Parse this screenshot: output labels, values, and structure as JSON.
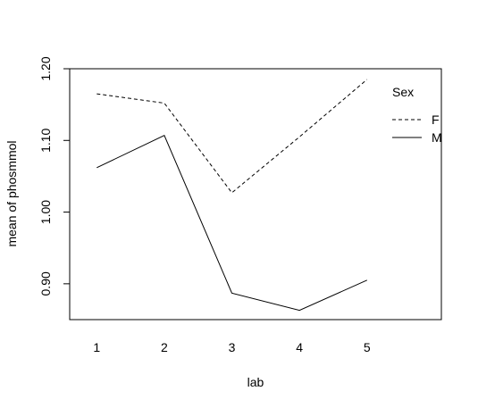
{
  "chart_data": {
    "type": "line",
    "title": "",
    "xlabel": "lab",
    "ylabel": "mean of  phosmmol",
    "categories": [
      "1",
      "2",
      "3",
      "4",
      "5"
    ],
    "x": [
      1,
      2,
      3,
      4,
      5
    ],
    "xlim": [
      0.6,
      6.1
    ],
    "ylim": [
      0.85,
      1.2
    ],
    "y_ticks": [
      0.9,
      1.0,
      1.1,
      1.2
    ],
    "y_tick_labels": [
      "0.90",
      "1.00",
      "1.10",
      "1.20"
    ],
    "grid": false,
    "legend": {
      "title": "Sex",
      "placement": "top-right"
    },
    "series": [
      {
        "name": "F",
        "line_style": "dashed",
        "color": "#000000",
        "values": [
          1.165,
          1.152,
          1.027,
          1.105,
          1.185
        ]
      },
      {
        "name": "M",
        "line_style": "solid",
        "color": "#000000",
        "values": [
          1.062,
          1.107,
          0.887,
          0.863,
          0.905
        ]
      }
    ]
  }
}
